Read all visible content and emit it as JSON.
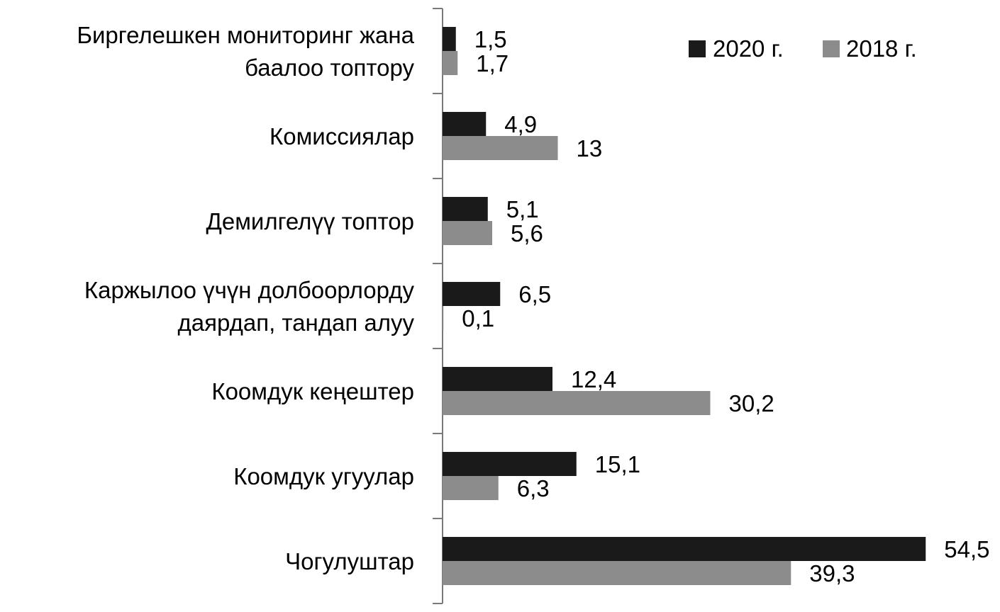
{
  "chart_data": {
    "type": "bar",
    "orientation": "horizontal",
    "title": "",
    "xlabel": "",
    "ylabel": "",
    "categories": [
      [
        "Биргелешкен мониторинг жана",
        "баалоо топтору"
      ],
      [
        "Комиссиялар"
      ],
      [
        "Демилгелүү топтор"
      ],
      [
        "Каржылоо үчүн долбоорлорду",
        "даярдап, тандап алуу"
      ],
      [
        "Коомдук кеңештер"
      ],
      [
        "Коомдук угуулар"
      ],
      [
        "Чогулуштар"
      ]
    ],
    "series": [
      {
        "name": "2020 г.",
        "color": "#1a1a1a",
        "values": [
          1.5,
          4.9,
          5.1,
          6.5,
          12.4,
          15.1,
          54.5
        ],
        "labels": [
          "1,5",
          "4,9",
          "5,1",
          "6,5",
          "12,4",
          "15,1",
          "54,5"
        ]
      },
      {
        "name": "2018 г.",
        "color": "#8c8c8c",
        "values": [
          1.7,
          13,
          5.6,
          0.1,
          30.2,
          6.3,
          39.3
        ],
        "labels": [
          "1,7",
          "13",
          "5,6",
          "0,1",
          "30,2",
          "6,3",
          "39,3"
        ]
      }
    ],
    "xlim": [
      0,
      55
    ],
    "legend": "top-right",
    "grid": false
  }
}
